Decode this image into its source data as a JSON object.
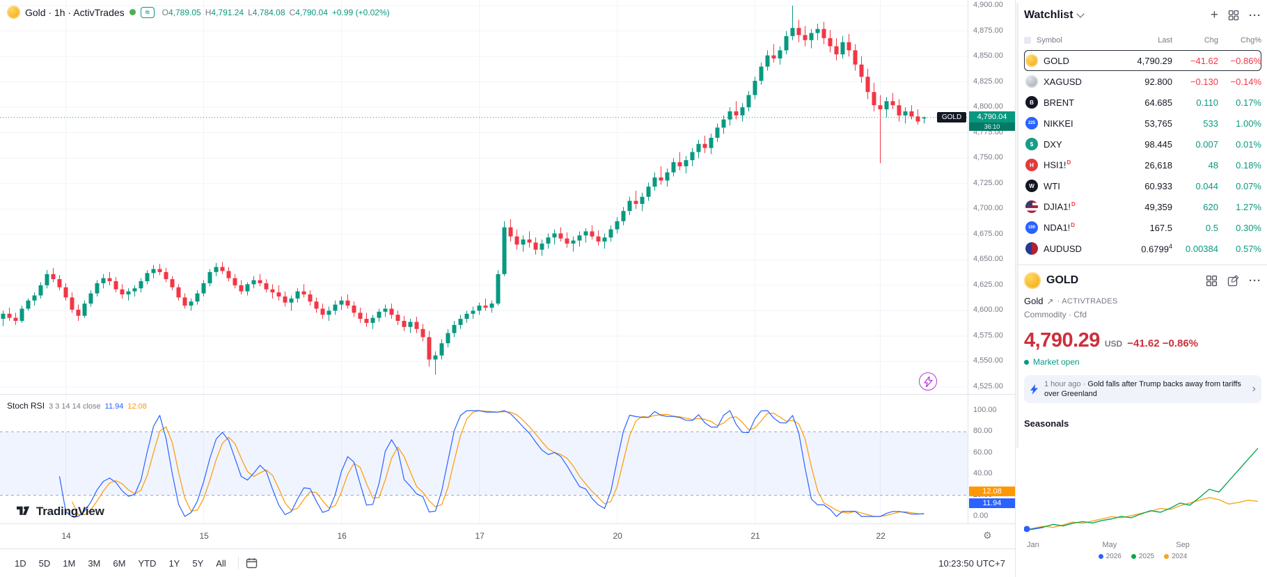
{
  "chart": {
    "legend_title": "Gold · 1h · ActivTrades",
    "ohlc": {
      "o_label": "O",
      "o": "4,789.05",
      "h_label": "H",
      "h": "4,791.24",
      "l_label": "L",
      "l": "4,784.08",
      "c_label": "C",
      "c": "4,790.04",
      "change": "+0.99 (+0.02%)"
    },
    "price_label": {
      "symbol": "GOLD",
      "price": "4,790.04",
      "countdown": "36:10"
    },
    "watermark": "TradingView"
  },
  "chart_data": {
    "type": "candlestick",
    "symbol": "GOLD",
    "interval": "1h",
    "ylim": [
      4525,
      4900
    ],
    "y_step": 25,
    "current_price": 4790.04,
    "x_ticks": [
      {
        "label": "14",
        "index": 10
      },
      {
        "label": "15",
        "index": 32
      },
      {
        "label": "16",
        "index": 54
      },
      {
        "label": "17",
        "index": 76
      },
      {
        "label": "20",
        "index": 98
      },
      {
        "label": "21",
        "index": 120
      },
      {
        "label": "22",
        "index": 140
      }
    ],
    "candles": [
      [
        4592,
        4600,
        4585,
        4597
      ],
      [
        4597,
        4603,
        4590,
        4593
      ],
      [
        4593,
        4598,
        4586,
        4590
      ],
      [
        4590,
        4605,
        4588,
        4602
      ],
      [
        4602,
        4612,
        4600,
        4610
      ],
      [
        4610,
        4618,
        4605,
        4615
      ],
      [
        4615,
        4628,
        4612,
        4625
      ],
      [
        4625,
        4640,
        4622,
        4636
      ],
      [
        4636,
        4642,
        4628,
        4631
      ],
      [
        4631,
        4635,
        4620,
        4623
      ],
      [
        4623,
        4627,
        4610,
        4613
      ],
      [
        4613,
        4618,
        4598,
        4601
      ],
      [
        4601,
        4606,
        4590,
        4595
      ],
      [
        4595,
        4610,
        4593,
        4607
      ],
      [
        4607,
        4620,
        4604,
        4617
      ],
      [
        4617,
        4630,
        4614,
        4627
      ],
      [
        4627,
        4636,
        4622,
        4632
      ],
      [
        4632,
        4638,
        4625,
        4629
      ],
      [
        4629,
        4633,
        4618,
        4621
      ],
      [
        4621,
        4626,
        4612,
        4616
      ],
      [
        4616,
        4622,
        4610,
        4619
      ],
      [
        4619,
        4625,
        4614,
        4622
      ],
      [
        4622,
        4632,
        4618,
        4629
      ],
      [
        4629,
        4640,
        4626,
        4637
      ],
      [
        4637,
        4645,
        4632,
        4641
      ],
      [
        4641,
        4646,
        4635,
        4638
      ],
      [
        4638,
        4642,
        4628,
        4631
      ],
      [
        4631,
        4634,
        4620,
        4623
      ],
      [
        4623,
        4626,
        4610,
        4613
      ],
      [
        4613,
        4617,
        4602,
        4605
      ],
      [
        4605,
        4612,
        4600,
        4609
      ],
      [
        4609,
        4620,
        4606,
        4617
      ],
      [
        4617,
        4630,
        4614,
        4627
      ],
      [
        4627,
        4641,
        4624,
        4638
      ],
      [
        4638,
        4647,
        4634,
        4643
      ],
      [
        4643,
        4648,
        4636,
        4639
      ],
      [
        4639,
        4643,
        4629,
        4632
      ],
      [
        4632,
        4636,
        4622,
        4625
      ],
      [
        4625,
        4630,
        4616,
        4619
      ],
      [
        4619,
        4628,
        4615,
        4626
      ],
      [
        4626,
        4634,
        4622,
        4630
      ],
      [
        4630,
        4636,
        4624,
        4627
      ],
      [
        4627,
        4631,
        4618,
        4621
      ],
      [
        4621,
        4626,
        4612,
        4618
      ],
      [
        4618,
        4625,
        4610,
        4614
      ],
      [
        4614,
        4619,
        4604,
        4608
      ],
      [
        4608,
        4615,
        4600,
        4612
      ],
      [
        4612,
        4622,
        4608,
        4619
      ],
      [
        4619,
        4626,
        4613,
        4616
      ],
      [
        4616,
        4620,
        4605,
        4609
      ],
      [
        4609,
        4613,
        4598,
        4602
      ],
      [
        4602,
        4607,
        4592,
        4596
      ],
      [
        4596,
        4604,
        4590,
        4600
      ],
      [
        4600,
        4610,
        4596,
        4606
      ],
      [
        4606,
        4614,
        4601,
        4610
      ],
      [
        4610,
        4616,
        4602,
        4605
      ],
      [
        4605,
        4609,
        4594,
        4598
      ],
      [
        4598,
        4603,
        4588,
        4592
      ],
      [
        4592,
        4598,
        4584,
        4588
      ],
      [
        4588,
        4596,
        4582,
        4593
      ],
      [
        4593,
        4602,
        4589,
        4599
      ],
      [
        4599,
        4606,
        4594,
        4602
      ],
      [
        4602,
        4607,
        4592,
        4596
      ],
      [
        4596,
        4600,
        4586,
        4590
      ],
      [
        4590,
        4595,
        4580,
        4584
      ],
      [
        4584,
        4592,
        4578,
        4589
      ],
      [
        4589,
        4594,
        4578,
        4582
      ],
      [
        4582,
        4587,
        4570,
        4574
      ],
      [
        4574,
        4580,
        4545,
        4552
      ],
      [
        4552,
        4560,
        4537,
        4556
      ],
      [
        4556,
        4572,
        4552,
        4568
      ],
      [
        4568,
        4582,
        4564,
        4578
      ],
      [
        4578,
        4590,
        4574,
        4586
      ],
      [
        4586,
        4596,
        4582,
        4592
      ],
      [
        4592,
        4600,
        4588,
        4597
      ],
      [
        4597,
        4604,
        4592,
        4600
      ],
      [
        4600,
        4608,
        4596,
        4605
      ],
      [
        4605,
        4612,
        4600,
        4603
      ],
      [
        4603,
        4610,
        4598,
        4607
      ],
      [
        4607,
        4640,
        4605,
        4636
      ],
      [
        4636,
        4688,
        4634,
        4682
      ],
      [
        4682,
        4690,
        4668,
        4673
      ],
      [
        4673,
        4680,
        4660,
        4665
      ],
      [
        4665,
        4674,
        4658,
        4670
      ],
      [
        4670,
        4678,
        4662,
        4667
      ],
      [
        4667,
        4672,
        4655,
        4660
      ],
      [
        4660,
        4670,
        4654,
        4666
      ],
      [
        4666,
        4676,
        4661,
        4672
      ],
      [
        4672,
        4680,
        4665,
        4676
      ],
      [
        4676,
        4682,
        4668,
        4671
      ],
      [
        4671,
        4677,
        4662,
        4666
      ],
      [
        4666,
        4673,
        4658,
        4669
      ],
      [
        4669,
        4678,
        4663,
        4674
      ],
      [
        4674,
        4681,
        4667,
        4678
      ],
      [
        4678,
        4684,
        4670,
        4673
      ],
      [
        4673,
        4679,
        4664,
        4668
      ],
      [
        4668,
        4676,
        4661,
        4672
      ],
      [
        4672,
        4684,
        4668,
        4680
      ],
      [
        4680,
        4692,
        4676,
        4688
      ],
      [
        4688,
        4702,
        4684,
        4698
      ],
      [
        4698,
        4712,
        4694,
        4708
      ],
      [
        4708,
        4718,
        4700,
        4705
      ],
      [
        4705,
        4716,
        4698,
        4712
      ],
      [
        4712,
        4726,
        4708,
        4722
      ],
      [
        4722,
        4736,
        4718,
        4731
      ],
      [
        4731,
        4742,
        4724,
        4728
      ],
      [
        4728,
        4740,
        4722,
        4736
      ],
      [
        4736,
        4750,
        4732,
        4746
      ],
      [
        4746,
        4756,
        4738,
        4742
      ],
      [
        4742,
        4752,
        4735,
        4748
      ],
      [
        4748,
        4760,
        4742,
        4756
      ],
      [
        4756,
        4768,
        4750,
        4764
      ],
      [
        4764,
        4772,
        4755,
        4760
      ],
      [
        4760,
        4774,
        4754,
        4770
      ],
      [
        4770,
        4784,
        4766,
        4780
      ],
      [
        4780,
        4792,
        4774,
        4788
      ],
      [
        4788,
        4800,
        4782,
        4796
      ],
      [
        4796,
        4806,
        4788,
        4792
      ],
      [
        4792,
        4804,
        4786,
        4800
      ],
      [
        4800,
        4816,
        4796,
        4812
      ],
      [
        4812,
        4830,
        4808,
        4826
      ],
      [
        4826,
        4844,
        4822,
        4840
      ],
      [
        4840,
        4856,
        4836,
        4851
      ],
      [
        4851,
        4862,
        4844,
        4848
      ],
      [
        4848,
        4860,
        4842,
        4856
      ],
      [
        4856,
        4875,
        4852,
        4870
      ],
      [
        4870,
        4900,
        4866,
        4878
      ],
      [
        4878,
        4886,
        4864,
        4871
      ],
      [
        4871,
        4880,
        4860,
        4866
      ],
      [
        4866,
        4877,
        4858,
        4873
      ],
      [
        4873,
        4882,
        4866,
        4877
      ],
      [
        4877,
        4884,
        4862,
        4868
      ],
      [
        4868,
        4876,
        4854,
        4860
      ],
      [
        4860,
        4868,
        4846,
        4852
      ],
      [
        4852,
        4870,
        4848,
        4864
      ],
      [
        4864,
        4872,
        4850,
        4856
      ],
      [
        4856,
        4862,
        4836,
        4842
      ],
      [
        4842,
        4850,
        4824,
        4830
      ],
      [
        4830,
        4838,
        4808,
        4815
      ],
      [
        4815,
        4824,
        4796,
        4802
      ],
      [
        4802,
        4812,
        4745,
        4798
      ],
      [
        4798,
        4810,
        4790,
        4806
      ],
      [
        4806,
        4814,
        4798,
        4802
      ],
      [
        4802,
        4808,
        4786,
        4792
      ],
      [
        4792,
        4800,
        4784,
        4796
      ],
      [
        4796,
        4802,
        4788,
        4791
      ],
      [
        4791,
        4798,
        4783,
        4786
      ],
      [
        4789,
        4791,
        4784,
        4790
      ]
    ],
    "indicator": {
      "type": "stoch-rsi",
      "name": "Stoch RSI",
      "params": "3 3 14 14 close",
      "k_value": "11.94",
      "d_value": "12.08",
      "k_color": "#2962ff",
      "d_color": "#ff9800",
      "bands": [
        20,
        80
      ],
      "y_range": [
        0,
        100
      ],
      "y_step": 20
    },
    "seasonals": {
      "type": "line",
      "title": "Seasonals",
      "x_labels": [
        "Jan",
        "May",
        "Sep"
      ],
      "series": [
        {
          "name": "2026",
          "color": "#2962ff",
          "dot_start": true,
          "values": [
            0,
            0.5,
            1.1
          ]
        },
        {
          "name": "2025",
          "color": "#0aa74f",
          "values": [
            0,
            0.6,
            1.2,
            2.2,
            1.6,
            2.6,
            3.2,
            2.7,
            3.6,
            4.2,
            5.1,
            4.6,
            6,
            7.2,
            6.6,
            8.1,
            10,
            9.2,
            12,
            15,
            14,
            18,
            22,
            26,
            30
          ]
        },
        {
          "name": "2024",
          "color": "#f5a623",
          "values": [
            0,
            0.8,
            1.5,
            1.1,
            2,
            3,
            2.6,
            3.4,
            4.2,
            5,
            4.6,
            5.4,
            6.2,
            7,
            8,
            7.6,
            9,
            10,
            11,
            12,
            11.2,
            9.6,
            10.2,
            11,
            10.6
          ]
        }
      ]
    }
  },
  "toolbar": {
    "ranges": [
      "1D",
      "5D",
      "1M",
      "3M",
      "6M",
      "YTD",
      "1Y",
      "5Y",
      "All"
    ],
    "clock": "10:23:50 UTC+7"
  },
  "watchlist": {
    "title": "Watchlist",
    "columns": [
      "Symbol",
      "Last",
      "Chg",
      "Chg%"
    ],
    "rows": [
      {
        "symbol": "GOLD",
        "last": "4,790.29",
        "chg": "−41.62",
        "chgp": "−0.86%",
        "dir": "down",
        "selected": true,
        "icon": {
          "cls": "coin-gold"
        }
      },
      {
        "symbol": "XAGUSD",
        "last": "92.800",
        "chg": "−0.130",
        "chgp": "−0.14%",
        "dir": "down",
        "icon": {
          "cls": "coin-silver"
        }
      },
      {
        "symbol": "BRENT",
        "last": "64.685",
        "chg": "0.110",
        "chgp": "0.17%",
        "dir": "up",
        "icon": {
          "bg": "#131722",
          "glyph": "B"
        }
      },
      {
        "symbol": "NIKKEI",
        "last": "53,765",
        "chg": "533",
        "chgp": "1.00%",
        "dir": "up",
        "icon": {
          "bg": "#2962ff",
          "glyph": "225",
          "small": true
        }
      },
      {
        "symbol": "DXY",
        "last": "98.445",
        "chg": "0.007",
        "chgp": "0.01%",
        "dir": "up",
        "icon": {
          "bg": "#169d87",
          "glyph": "$"
        }
      },
      {
        "symbol": "HSI1!",
        "sup": "D",
        "last": "26,618",
        "chg": "48",
        "chgp": "0.18%",
        "dir": "up",
        "icon": {
          "bg": "#e23b3b",
          "glyph": "H"
        }
      },
      {
        "symbol": "WTI",
        "last": "60.933",
        "chg": "0.044",
        "chgp": "0.07%",
        "dir": "up",
        "icon": {
          "bg": "#131722",
          "glyph": "W"
        }
      },
      {
        "symbol": "DJIA1!",
        "sup": "D",
        "last": "49,359",
        "chg": "620",
        "chgp": "1.27%",
        "dir": "up",
        "icon": {
          "cls": "flag-us"
        }
      },
      {
        "symbol": "NDA1!",
        "sup": "D",
        "last": "167.5",
        "chg": "0.5",
        "chgp": "0.30%",
        "dir": "up",
        "icon": {
          "bg": "#2962ff",
          "glyph": "100",
          "small": true
        }
      },
      {
        "symbol": "AUDUSD",
        "last": "0.6799",
        "last_sup": "4",
        "chg": "0.00384",
        "chgp": "0.57%",
        "dir": "up",
        "icon": {
          "cls": "flag-auus"
        }
      }
    ]
  },
  "detail": {
    "symbol": "GOLD",
    "name": "Gold",
    "exchange": "ACTIVTRADES",
    "category": "Commodity · Cfd",
    "price": "4,790.29",
    "currency": "USD",
    "change": "−41.62",
    "change_pct": "−0.86%",
    "status": "Market open",
    "news": {
      "time": "1 hour ago",
      "sep": " · ",
      "headline": "Gold falls after Trump backs away from tariffs over Greenland"
    }
  },
  "colors": {
    "up": "#089981",
    "down": "#f23645",
    "accent": "#2962ff",
    "grid": "#f0f3fa"
  }
}
